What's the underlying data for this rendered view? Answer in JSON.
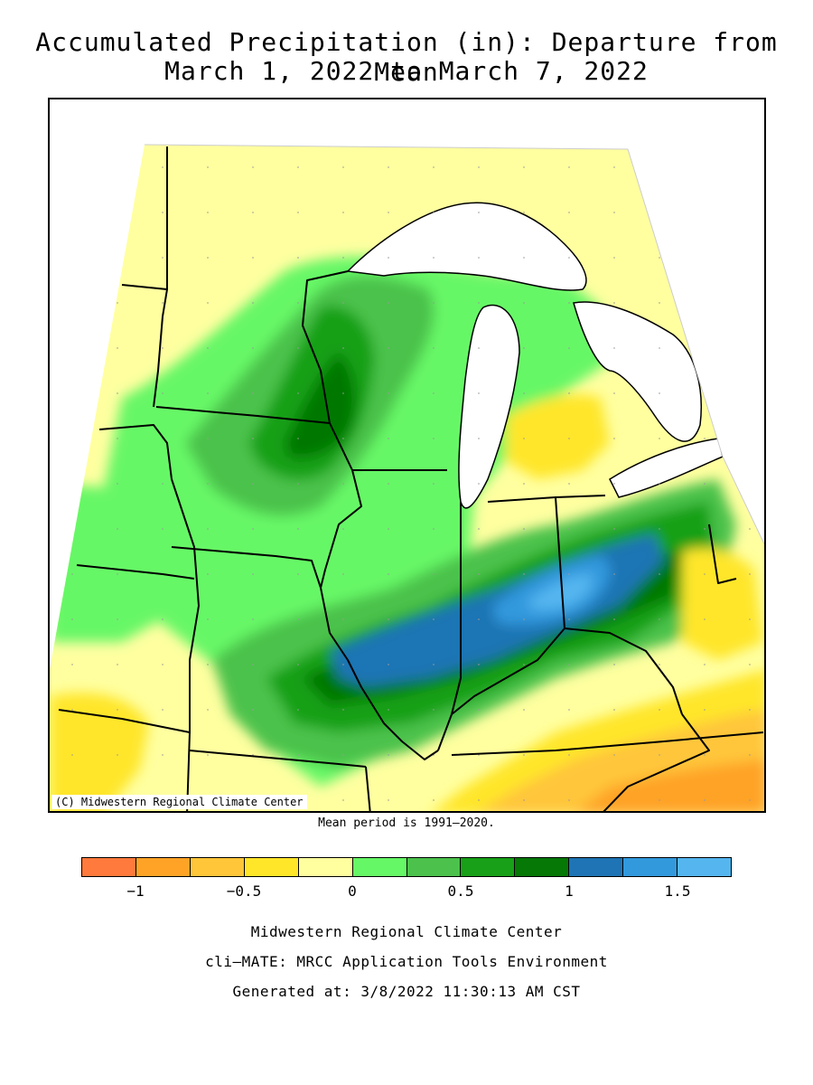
{
  "title": {
    "line1": "Accumulated Precipitation (in): Departure from Mean",
    "line2": "March 1, 2022 to March 7, 2022"
  },
  "map": {
    "credit": "(C) Midwestern Regional Climate Center",
    "mean_period": "Mean period is 1991–2020."
  },
  "legend": {
    "colors": [
      "#ff7a3c",
      "#ffa326",
      "#ffc63a",
      "#ffe629",
      "#ffffa0",
      "#66f766",
      "#4cc24c",
      "#18a018",
      "#067806",
      "#1e74b4",
      "#3399dd",
      "#55b6ef"
    ],
    "ticks": [
      "−1",
      "−0.5",
      "0",
      "0.5",
      "1",
      "1.5"
    ]
  },
  "footer": {
    "line1": "Midwestern Regional Climate Center",
    "line2": "cli–MATE: MRCC Application Tools Environment",
    "line3": "Generated at: 3/8/2022 11:30:13 AM CST"
  }
}
